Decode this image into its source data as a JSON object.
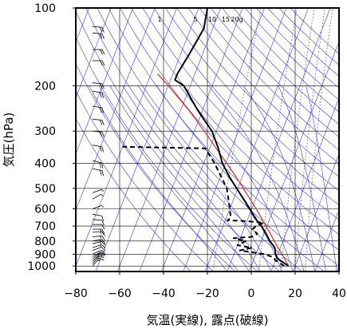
{
  "chart_data": {
    "type": "line",
    "xlabel": "気温(実線), 露点(破線)",
    "ylabel": "気圧(hPa)",
    "x_ticks": [
      "−80",
      "−60",
      "−40",
      "−20",
      "0",
      "20",
      "40"
    ],
    "y_ticks": [
      "100",
      "200",
      "300",
      "400",
      "500",
      "600",
      "700",
      "800",
      "900",
      "1000"
    ],
    "xlim": [
      -80,
      40
    ],
    "ylim": [
      1050,
      100
    ],
    "y_scale": "log",
    "grid": true,
    "mixing_ratio_labels": [
      "1",
      "5",
      "10",
      "15",
      "20g"
    ],
    "series": [
      {
        "role": "temperature",
        "line_style": "solid",
        "color": "#000000",
        "points": [
          {
            "p": 1000,
            "t": 17
          },
          {
            "p": 950,
            "t": 12
          },
          {
            "p": 925,
            "t": 10
          },
          {
            "p": 900,
            "t": 9
          },
          {
            "p": 850,
            "t": 7.5
          },
          {
            "p": 800,
            "t": 4
          },
          {
            "p": 750,
            "t": 1
          },
          {
            "p": 700,
            "t": -2.5
          },
          {
            "p": 650,
            "t": -7
          },
          {
            "p": 600,
            "t": -11
          },
          {
            "p": 550,
            "t": -15.5
          },
          {
            "p": 500,
            "t": -20.5
          },
          {
            "p": 450,
            "t": -26
          },
          {
            "p": 400,
            "t": -31.5
          },
          {
            "p": 350,
            "t": -36
          },
          {
            "p": 300,
            "t": -42
          },
          {
            "p": 250,
            "t": -52
          },
          {
            "p": 200,
            "t": -63
          },
          {
            "p": 190,
            "t": -68
          },
          {
            "p": 180,
            "t": -68
          },
          {
            "p": 150,
            "t": -66
          },
          {
            "p": 120,
            "t": -64
          },
          {
            "p": 110,
            "t": -65
          },
          {
            "p": 100,
            "t": -66
          }
        ]
      },
      {
        "role": "dewpoint",
        "line_style": "dashed",
        "color": "#000000",
        "points": [
          {
            "p": 1000,
            "t": 15
          },
          {
            "p": 950,
            "t": 10
          },
          {
            "p": 925,
            "t": 8.5
          },
          {
            "p": 900,
            "t": 4
          },
          {
            "p": 870,
            "t": -8
          },
          {
            "p": 850,
            "t": -3
          },
          {
            "p": 830,
            "t": -10
          },
          {
            "p": 800,
            "t": -7
          },
          {
            "p": 780,
            "t": -13
          },
          {
            "p": 770,
            "t": -5
          },
          {
            "p": 750,
            "t": -3
          },
          {
            "p": 720,
            "t": -6
          },
          {
            "p": 700,
            "t": -5
          },
          {
            "p": 680,
            "t": -2
          },
          {
            "p": 670,
            "t": -10
          },
          {
            "p": 665,
            "t": -19
          },
          {
            "p": 650,
            "t": -18
          },
          {
            "p": 600,
            "t": -20
          },
          {
            "p": 500,
            "t": -25
          },
          {
            "p": 400,
            "t": -35
          },
          {
            "p": 350,
            "t": -42
          },
          {
            "p": 345,
            "t": -80
          }
        ]
      },
      {
        "role": "parcel",
        "line_style": "solid",
        "color": "#d23030",
        "points": [
          {
            "p": 1000,
            "t": 17
          },
          {
            "p": 950,
            "t": 14.5
          },
          {
            "p": 900,
            "t": 12
          },
          {
            "p": 850,
            "t": 9
          },
          {
            "p": 800,
            "t": 6
          },
          {
            "p": 750,
            "t": 3
          },
          {
            "p": 700,
            "t": -0.5
          },
          {
            "p": 650,
            "t": -4
          },
          {
            "p": 600,
            "t": -8
          },
          {
            "p": 550,
            "t": -12.5
          },
          {
            "p": 500,
            "t": -17.5
          },
          {
            "p": 450,
            "t": -23
          },
          {
            "p": 400,
            "t": -29.5
          },
          {
            "p": 350,
            "t": -37
          },
          {
            "p": 300,
            "t": -45.5
          },
          {
            "p": 250,
            "t": -56
          },
          {
            "p": 200,
            "t": -70
          },
          {
            "p": 180,
            "t": -77
          }
        ]
      }
    ],
    "wind_barbs": [
      {
        "p": 1000,
        "dir": 220,
        "kt": 15
      },
      {
        "p": 980,
        "dir": 220,
        "kt": 15
      },
      {
        "p": 960,
        "dir": 225,
        "kt": 15
      },
      {
        "p": 940,
        "dir": 230,
        "kt": 15
      },
      {
        "p": 920,
        "dir": 240,
        "kt": 10
      },
      {
        "p": 900,
        "dir": 245,
        "kt": 10
      },
      {
        "p": 870,
        "dir": 250,
        "kt": 10
      },
      {
        "p": 850,
        "dir": 250,
        "kt": 15
      },
      {
        "p": 820,
        "dir": 255,
        "kt": 15
      },
      {
        "p": 800,
        "dir": 260,
        "kt": 15
      },
      {
        "p": 770,
        "dir": 265,
        "kt": 15
      },
      {
        "p": 740,
        "dir": 265,
        "kt": 15
      },
      {
        "p": 720,
        "dir": 270,
        "kt": 15
      },
      {
        "p": 690,
        "dir": 270,
        "kt": 10
      },
      {
        "p": 660,
        "dir": 275,
        "kt": 10
      },
      {
        "p": 630,
        "dir": 280,
        "kt": 10
      },
      {
        "p": 600,
        "dir": 250,
        "kt": 5
      },
      {
        "p": 550,
        "dir": 240,
        "kt": 5
      },
      {
        "p": 520,
        "dir": 250,
        "kt": 5
      },
      {
        "p": 420,
        "dir": 280,
        "kt": 20
      },
      {
        "p": 390,
        "dir": 285,
        "kt": 20
      },
      {
        "p": 340,
        "dir": 280,
        "kt": 20
      },
      {
        "p": 300,
        "dir": 275,
        "kt": 20
      },
      {
        "p": 270,
        "dir": 275,
        "kt": 20
      },
      {
        "p": 240,
        "dir": 280,
        "kt": 20
      },
      {
        "p": 210,
        "dir": 280,
        "kt": 20
      },
      {
        "p": 195,
        "dir": 275,
        "kt": 20
      },
      {
        "p": 160,
        "dir": 270,
        "kt": 20
      },
      {
        "p": 145,
        "dir": 270,
        "kt": 20
      },
      {
        "p": 125,
        "dir": 275,
        "kt": 20
      },
      {
        "p": 118,
        "dir": 275,
        "kt": 20
      }
    ],
    "colors": {
      "background_lines": "#3a3ae0",
      "grid": "#000000",
      "temperature": "#000000",
      "dewpoint": "#000000",
      "parcel": "#d23030"
    }
  }
}
